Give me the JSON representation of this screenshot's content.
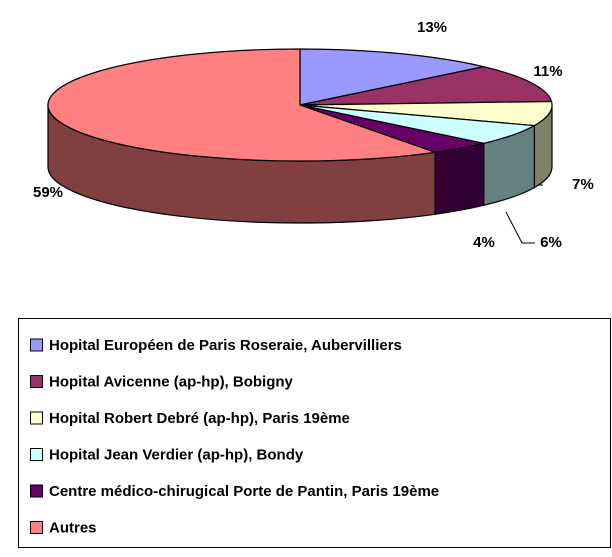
{
  "chart_data": {
    "type": "pie",
    "categories": [
      "Hopital Européen de Paris Roseraie, Aubervilliers",
      "Hopital Avicenne (ap-hp), Bobigny",
      "Hopital Robert Debré (ap-hp), Paris 19ème",
      "Hopital Jean Verdier (ap-hp), Bondy",
      "Centre médico-chirugical Porte de Pantin, Paris 19ème",
      "Autres"
    ],
    "values": [
      13,
      11,
      7,
      6,
      4,
      59
    ],
    "value_labels": [
      "13%",
      "11%",
      "7%",
      "6%",
      "4%",
      "59%"
    ],
    "colors": [
      "#9999ff",
      "#993366",
      "#ffffcc",
      "#ccffff",
      "#660066",
      "#ff8080"
    ],
    "legend": "bottom"
  }
}
